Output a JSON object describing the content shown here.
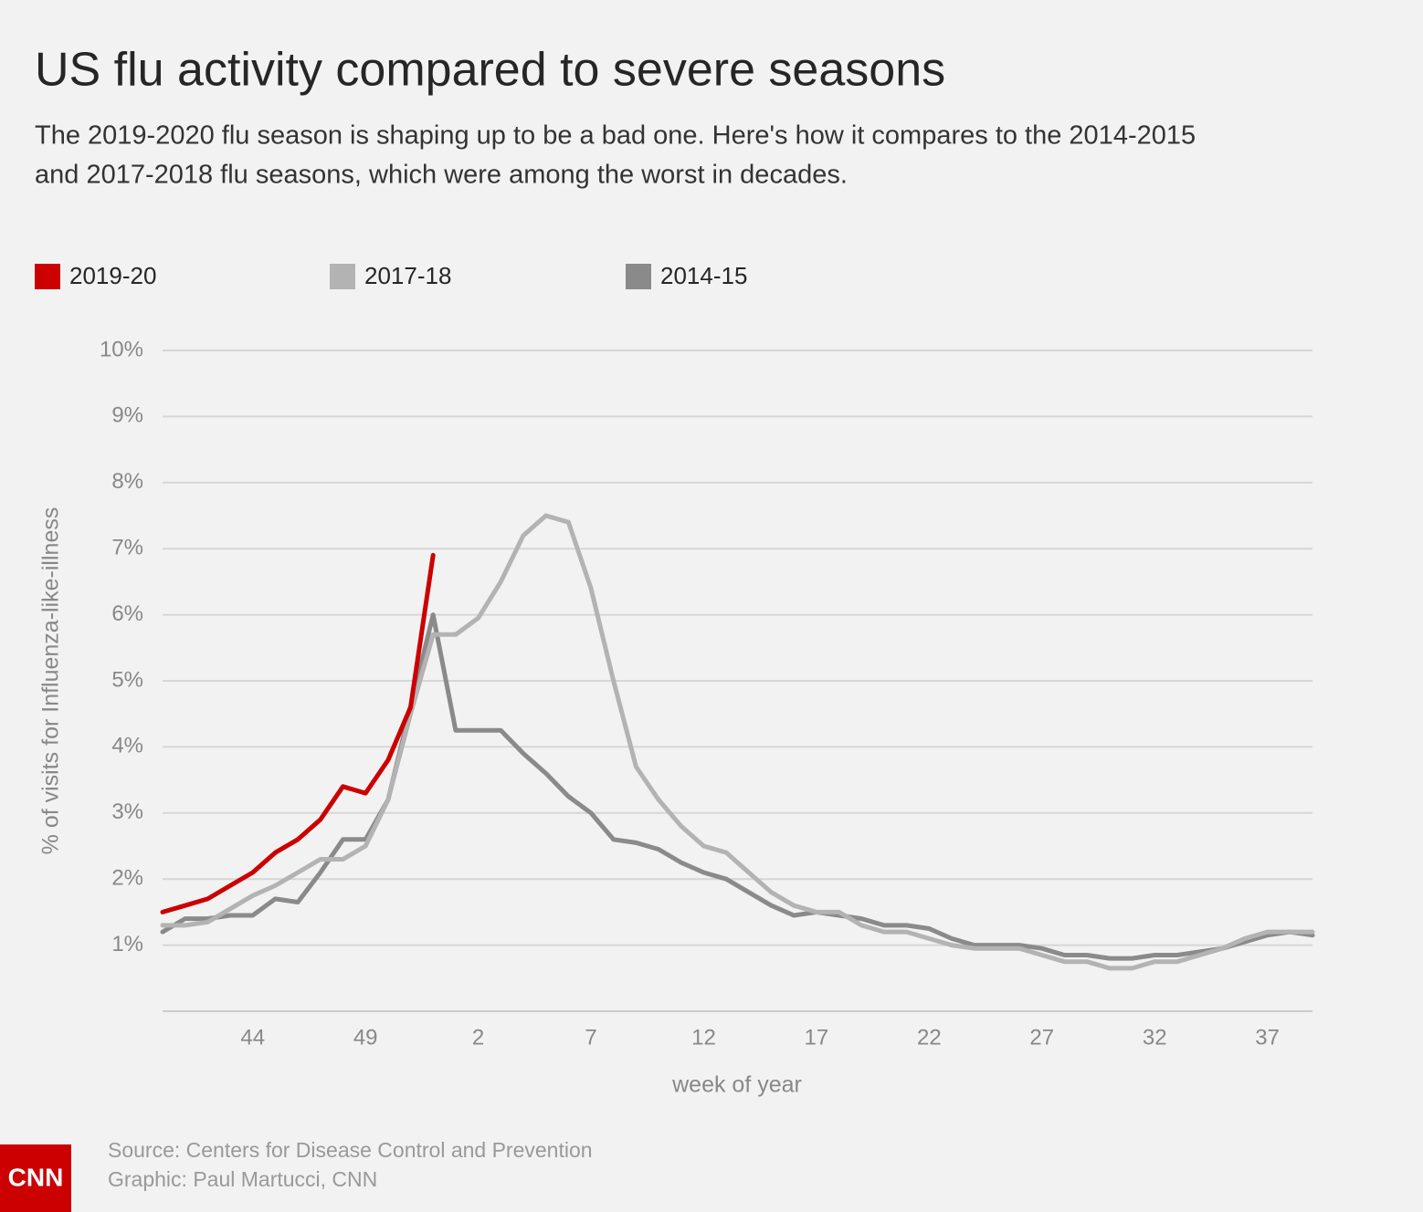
{
  "chart_data": {
    "type": "line",
    "title": "US flu activity compared to severe seasons",
    "subtitle": [
      "The 2019-2020 flu season is shaping up to be a bad one. Here's how it compares to the 2014-2015",
      "and 2017-2018 flu seasons, which were among the worst in decades."
    ],
    "x_label": "week of year",
    "y_label": "% of visits for Influenza-like-illness",
    "categories": [
      null,
      null,
      null,
      null,
      "44",
      null,
      null,
      null,
      null,
      "49",
      null,
      null,
      null,
      null,
      "2",
      null,
      null,
      null,
      null,
      "7",
      null,
      null,
      null,
      null,
      "12",
      null,
      null,
      null,
      null,
      "17",
      null,
      null,
      null,
      null,
      "22",
      null,
      null,
      null,
      null,
      "27",
      null,
      null,
      null,
      null,
      "32",
      null,
      null,
      null,
      null,
      "37",
      null,
      null
    ],
    "ylim": [
      0,
      10
    ],
    "yticks": [
      {
        "value": 1,
        "label": "1%"
      },
      {
        "value": 2,
        "label": "2%"
      },
      {
        "value": 3,
        "label": "3%"
      },
      {
        "value": 4,
        "label": "4%"
      },
      {
        "value": 5,
        "label": "5%"
      },
      {
        "value": 6,
        "label": "6%"
      },
      {
        "value": 7,
        "label": "7%"
      },
      {
        "value": 8,
        "label": "8%"
      },
      {
        "value": 9,
        "label": "9%"
      },
      {
        "value": 10,
        "label": "10%"
      }
    ],
    "grid": true,
    "legend": "top-left",
    "series": [
      {
        "name": "2019-20",
        "color": "#cc0000",
        "values": [
          1.5,
          1.6,
          1.7,
          1.9,
          2.1,
          2.4,
          2.6,
          2.9,
          3.4,
          3.3,
          3.8,
          4.6,
          6.9,
          null,
          null,
          null,
          null,
          null,
          null,
          null,
          null,
          null,
          null,
          null,
          null,
          null,
          null,
          null,
          null,
          null,
          null,
          null,
          null,
          null,
          null,
          null,
          null,
          null,
          null,
          null,
          null,
          null,
          null,
          null,
          null,
          null,
          null,
          null,
          null,
          null,
          null,
          null
        ]
      },
      {
        "name": "2017-18",
        "color": "#b3b3b3",
        "values": [
          1.3,
          1.3,
          1.35,
          1.55,
          1.75,
          1.9,
          2.1,
          2.3,
          2.3,
          2.5,
          3.2,
          4.5,
          5.7,
          5.7,
          5.95,
          6.5,
          7.2,
          7.5,
          7.4,
          6.4,
          5.0,
          3.7,
          3.2,
          2.8,
          2.5,
          2.4,
          2.1,
          1.8,
          1.6,
          1.5,
          1.5,
          1.3,
          1.2,
          1.2,
          1.1,
          1.0,
          0.95,
          0.95,
          0.95,
          0.85,
          0.75,
          0.75,
          0.65,
          0.65,
          0.75,
          0.75,
          0.85,
          0.95,
          1.1,
          1.2,
          1.2,
          1.2
        ]
      },
      {
        "name": "2014-15",
        "color": "#8a8a8a",
        "values": [
          1.2,
          1.4,
          1.4,
          1.45,
          1.45,
          1.7,
          1.65,
          2.1,
          2.6,
          2.6,
          3.2,
          4.6,
          6.0,
          4.25,
          4.25,
          4.25,
          3.9,
          3.6,
          3.25,
          3.0,
          2.6,
          2.55,
          2.45,
          2.25,
          2.1,
          2.0,
          1.8,
          1.6,
          1.45,
          1.5,
          1.45,
          1.4,
          1.3,
          1.3,
          1.25,
          1.1,
          1.0,
          1.0,
          1.0,
          0.95,
          0.85,
          0.85,
          0.8,
          0.8,
          0.85,
          0.85,
          0.9,
          0.95,
          1.05,
          1.15,
          1.2,
          1.15
        ]
      }
    ],
    "source": "Source: Centers for Disease Control and Prevention",
    "credit": "Graphic: Paul Martucci, CNN",
    "logo": "CNN"
  }
}
